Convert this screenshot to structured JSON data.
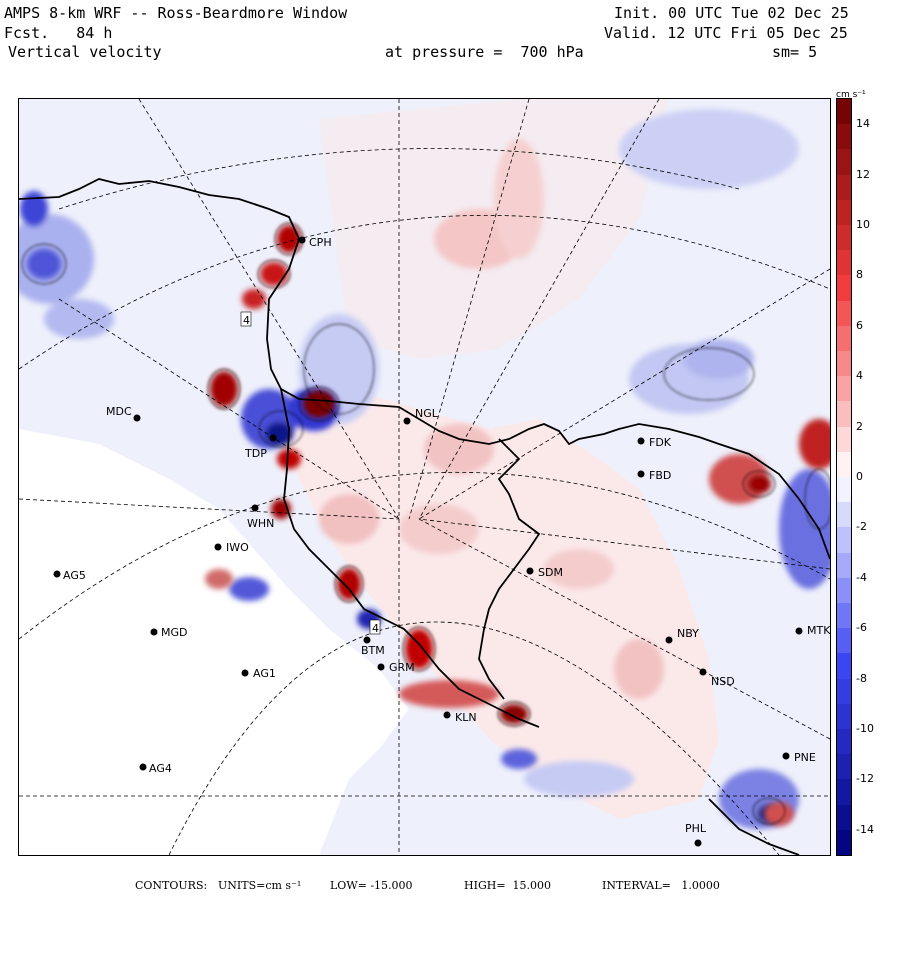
{
  "header": {
    "model": "AMPS 8-km WRF -- Ross-Beardmore Window",
    "forecast": "Fcst.   84 h",
    "variable": "Vertical velocity",
    "level": "at pressure =  700 hPa",
    "init": "Init. 00 UTC Tue 02 Dec 25",
    "valid": "Valid. 12 UTC Fri 05 Dec 25",
    "smoothing": "sm= 5"
  },
  "colorbar": {
    "units_label": "cm s⁻¹",
    "tick_labels": [
      "14",
      "12",
      "10",
      "8",
      "6",
      "4",
      "2",
      "0",
      "-2",
      "-4",
      "-6",
      "-8",
      "-10",
      "-12",
      "-14"
    ],
    "colors": {
      "max_red": "#7a0000",
      "red": "#e00000",
      "light_red": "#f6d6d6",
      "neutral": "#ffffff",
      "light_blue": "#dcdff8",
      "blue": "#1c22e0",
      "max_blue": "#00007a"
    }
  },
  "stations": [
    {
      "id": "CPH"
    },
    {
      "id": "MDC"
    },
    {
      "id": "NGL"
    },
    {
      "id": "FDK"
    },
    {
      "id": "FBD"
    },
    {
      "id": "TDP"
    },
    {
      "id": "WHN"
    },
    {
      "id": "IWO"
    },
    {
      "id": "AG5"
    },
    {
      "id": "SDM"
    },
    {
      "id": "MGD"
    },
    {
      "id": "NBY"
    },
    {
      "id": "MTK"
    },
    {
      "id": "AG1"
    },
    {
      "id": "GRM"
    },
    {
      "id": "NSD"
    },
    {
      "id": "KLN"
    },
    {
      "id": "AG4"
    },
    {
      "id": "PNE"
    },
    {
      "id": "PHL"
    },
    {
      "id": "BTM"
    }
  ],
  "contour_labels": [
    "4",
    "4"
  ],
  "footer": {
    "contours_label": "CONTOURS:",
    "units": "UNITS=cm s⁻¹",
    "low": "LOW= -15.000",
    "high": "HIGH=  15.000",
    "interval": "INTERVAL=   1.0000"
  }
}
